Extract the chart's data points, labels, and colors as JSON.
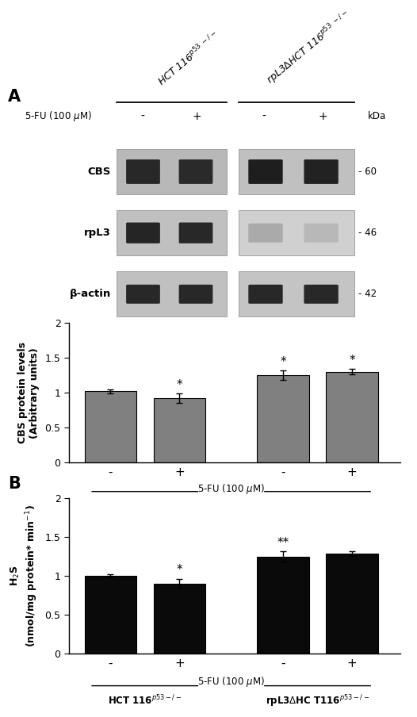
{
  "panel_A_label": "A",
  "panel_B_label": "B",
  "blot_header_left": "HCT 116$^{p53\\ -/-}$",
  "blot_header_right": "rpL3$\\Delta$HCT 116$^{p53\\ -/-}$",
  "fu_label": "5-FU (100 μM)",
  "kda_label": "kDa",
  "kda_values": [
    "- 60",
    "- 46",
    "- 42"
  ],
  "row_labels": [
    "CBS",
    "rpL3",
    "β-actin"
  ],
  "bar_A_values": [
    1.02,
    0.92,
    1.25,
    1.3
  ],
  "bar_A_errors": [
    0.03,
    0.07,
    0.07,
    0.04
  ],
  "bar_A_color": "#808080",
  "bar_A_ylabel_line1": "CBS protein levels",
  "bar_A_ylabel_line2": "(Arbitrary units)",
  "bar_A_ylim": [
    0,
    2
  ],
  "bar_A_yticks": [
    0,
    0.5,
    1,
    1.5,
    2
  ],
  "bar_A_yticklabels": [
    "0",
    "0.5",
    "1",
    "1.5",
    "2"
  ],
  "bar_A_stars": [
    "",
    "*",
    "*",
    "*"
  ],
  "bar_A_xticklabels": [
    "-",
    "+",
    "-",
    "+"
  ],
  "bar_A_group1_label": "HCT 116$^{p53-/-}$",
  "bar_A_group2_label": "rpL3$\\Delta$HCT 116$^{p53-/-}$",
  "bar_B_values": [
    1.0,
    0.9,
    1.24,
    1.28
  ],
  "bar_B_errors": [
    0.02,
    0.06,
    0.07,
    0.03
  ],
  "bar_B_color": "#0a0a0a",
  "bar_B_ylabel_line1": "H$_2$S",
  "bar_B_ylabel_line2": "(nmol/mg protein* min$^{-1}$)",
  "bar_B_ylim": [
    0,
    2
  ],
  "bar_B_yticks": [
    0,
    0.5,
    1,
    1.5,
    2
  ],
  "bar_B_yticklabels": [
    "0",
    "0.5",
    "1",
    "1.5",
    "2"
  ],
  "bar_B_stars": [
    "",
    "*",
    "**",
    ""
  ],
  "bar_B_xticklabels": [
    "-",
    "+",
    "-",
    "+"
  ],
  "bar_B_group1_label": "HCT 116$^{p53-/-}$",
  "bar_B_group2_label": "rpL3$\\Delta$HC T116$^{p53-/-}$",
  "bg_color": "#ffffff"
}
